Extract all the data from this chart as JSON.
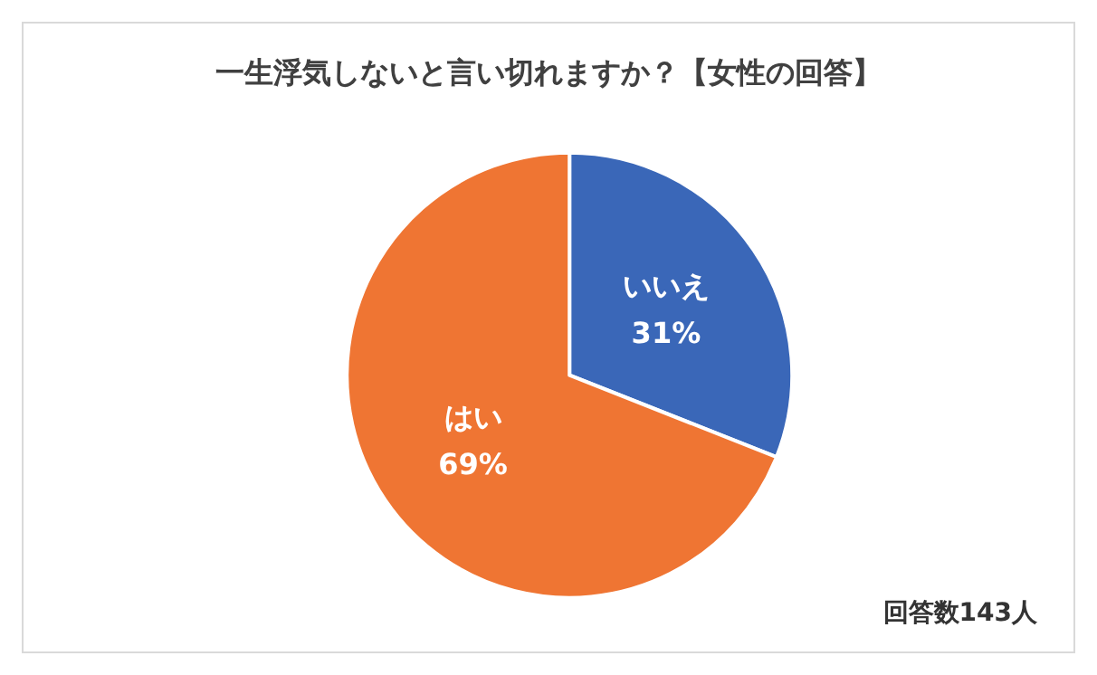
{
  "chart_data": {
    "type": "pie",
    "title": "一生浮気しないと言い切れますか？【女性の回答】",
    "categories": [
      "いいえ",
      "はい"
    ],
    "values": [
      31,
      69
    ],
    "colors": [
      "#3a67b8",
      "#ef7533"
    ],
    "value_labels": [
      "31%",
      "69%"
    ],
    "annotations": [
      "回答数143人"
    ],
    "legend": false
  }
}
